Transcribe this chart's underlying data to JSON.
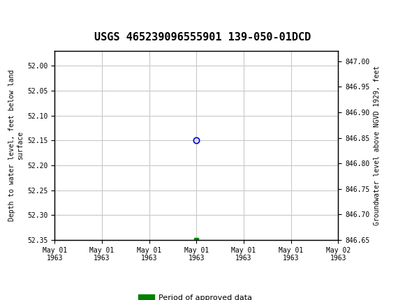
{
  "title": "USGS 465239096555901 139-050-01DCD",
  "ylabel_left": "Depth to water level, feet below land\nsurface",
  "ylabel_right": "Groundwater level above NGVD 1929, feet",
  "ylim_left": [
    52.35,
    51.97
  ],
  "ylim_right": [
    846.65,
    847.02
  ],
  "yticks_left": [
    52.0,
    52.05,
    52.1,
    52.15,
    52.2,
    52.25,
    52.3,
    52.35
  ],
  "yticks_right": [
    847.0,
    846.95,
    846.9,
    846.85,
    846.8,
    846.75,
    846.7,
    846.65
  ],
  "xtick_labels": [
    "May 01\n1963",
    "May 01\n1963",
    "May 01\n1963",
    "May 01\n1963",
    "May 01\n1963",
    "May 01\n1963",
    "May 02\n1963"
  ],
  "x_start": 0,
  "x_end": 6,
  "x_ticks": [
    0,
    1,
    2,
    3,
    4,
    5,
    6
  ],
  "open_marker_x": 3,
  "open_marker_y": 52.15,
  "approved_marker_x": 3,
  "approved_marker_y": 52.35,
  "background_color": "#ffffff",
  "plot_bg_color": "#ffffff",
  "grid_color": "#c8c8c8",
  "header_color": "#1a6b3c",
  "open_marker_color": "#0000cc",
  "approved_marker_color": "#008000",
  "legend_label": "Period of approved data"
}
